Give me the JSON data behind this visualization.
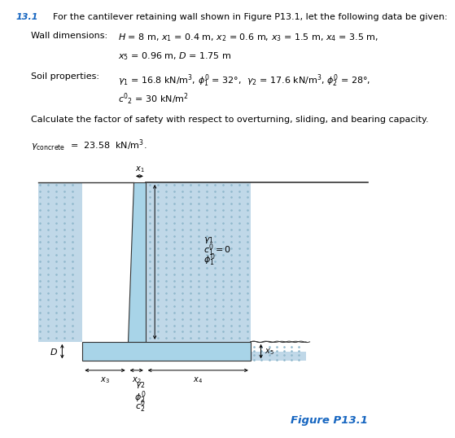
{
  "title_num": "13.1",
  "title_text": "For the cantilever retaining wall shown in Figure P13.1, let the following data be given:",
  "wall_color": "#a8d4e8",
  "soil_color_left": "#c0d8e8",
  "soil_color_right": "#c0d8e8",
  "dot_color": "#90b8cc",
  "line_color": "#333333",
  "blue_text_color": "#1565c0",
  "fig_label": "Figure P13.1",
  "text_fontsize": 8.0,
  "fig_fontsize": 9.5
}
